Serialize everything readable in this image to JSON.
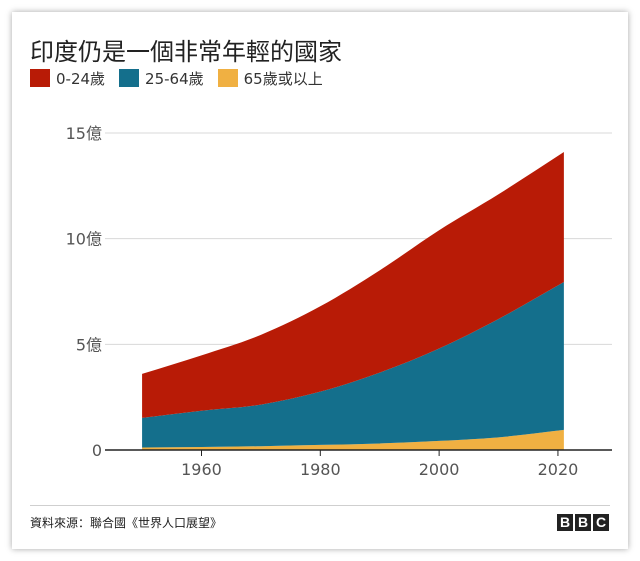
{
  "title": "印度仍是一個非常年輕的國家",
  "legend": [
    {
      "label": "0-24歲",
      "color": "#b81b06"
    },
    {
      "label": "25-64歲",
      "color": "#146f8c"
    },
    {
      "label": "65歲或以上",
      "color": "#f0b042"
    }
  ],
  "chart_data": {
    "type": "area",
    "stacked": true,
    "title": "印度仍是一個非常年輕的國家",
    "xlabel": "",
    "ylabel": "",
    "xlim": [
      1950,
      2021
    ],
    "ylim": [
      0,
      15
    ],
    "x_ticks": [
      1960,
      1980,
      2000,
      2020
    ],
    "x_tick_labels": [
      "1960",
      "1980",
      "2000",
      "2020"
    ],
    "y_ticks": [
      0,
      5,
      10,
      15
    ],
    "y_tick_labels": [
      "0",
      "5億",
      "10億",
      "15億"
    ],
    "grid": "horizontal",
    "legend_position": "top-left",
    "x": [
      1950,
      1960,
      1970,
      1980,
      1990,
      2000,
      2010,
      2021
    ],
    "series": [
      {
        "name": "65歲或以上",
        "color": "#f0b042",
        "values": [
          0.12,
          0.14,
          0.18,
          0.24,
          0.31,
          0.43,
          0.6,
          0.95
        ]
      },
      {
        "name": "25-64歲",
        "color": "#146f8c",
        "values": [
          1.4,
          1.72,
          1.97,
          2.52,
          3.35,
          4.37,
          5.6,
          7.0
        ]
      },
      {
        "name": "0-24歲",
        "color": "#b81b06",
        "values": [
          2.08,
          2.62,
          3.3,
          4.04,
          4.84,
          5.6,
          5.9,
          6.15
        ]
      }
    ]
  },
  "source": "資料來源：聯合國《世界人口展望》",
  "logo": {
    "letters": [
      "B",
      "B",
      "C"
    ]
  }
}
